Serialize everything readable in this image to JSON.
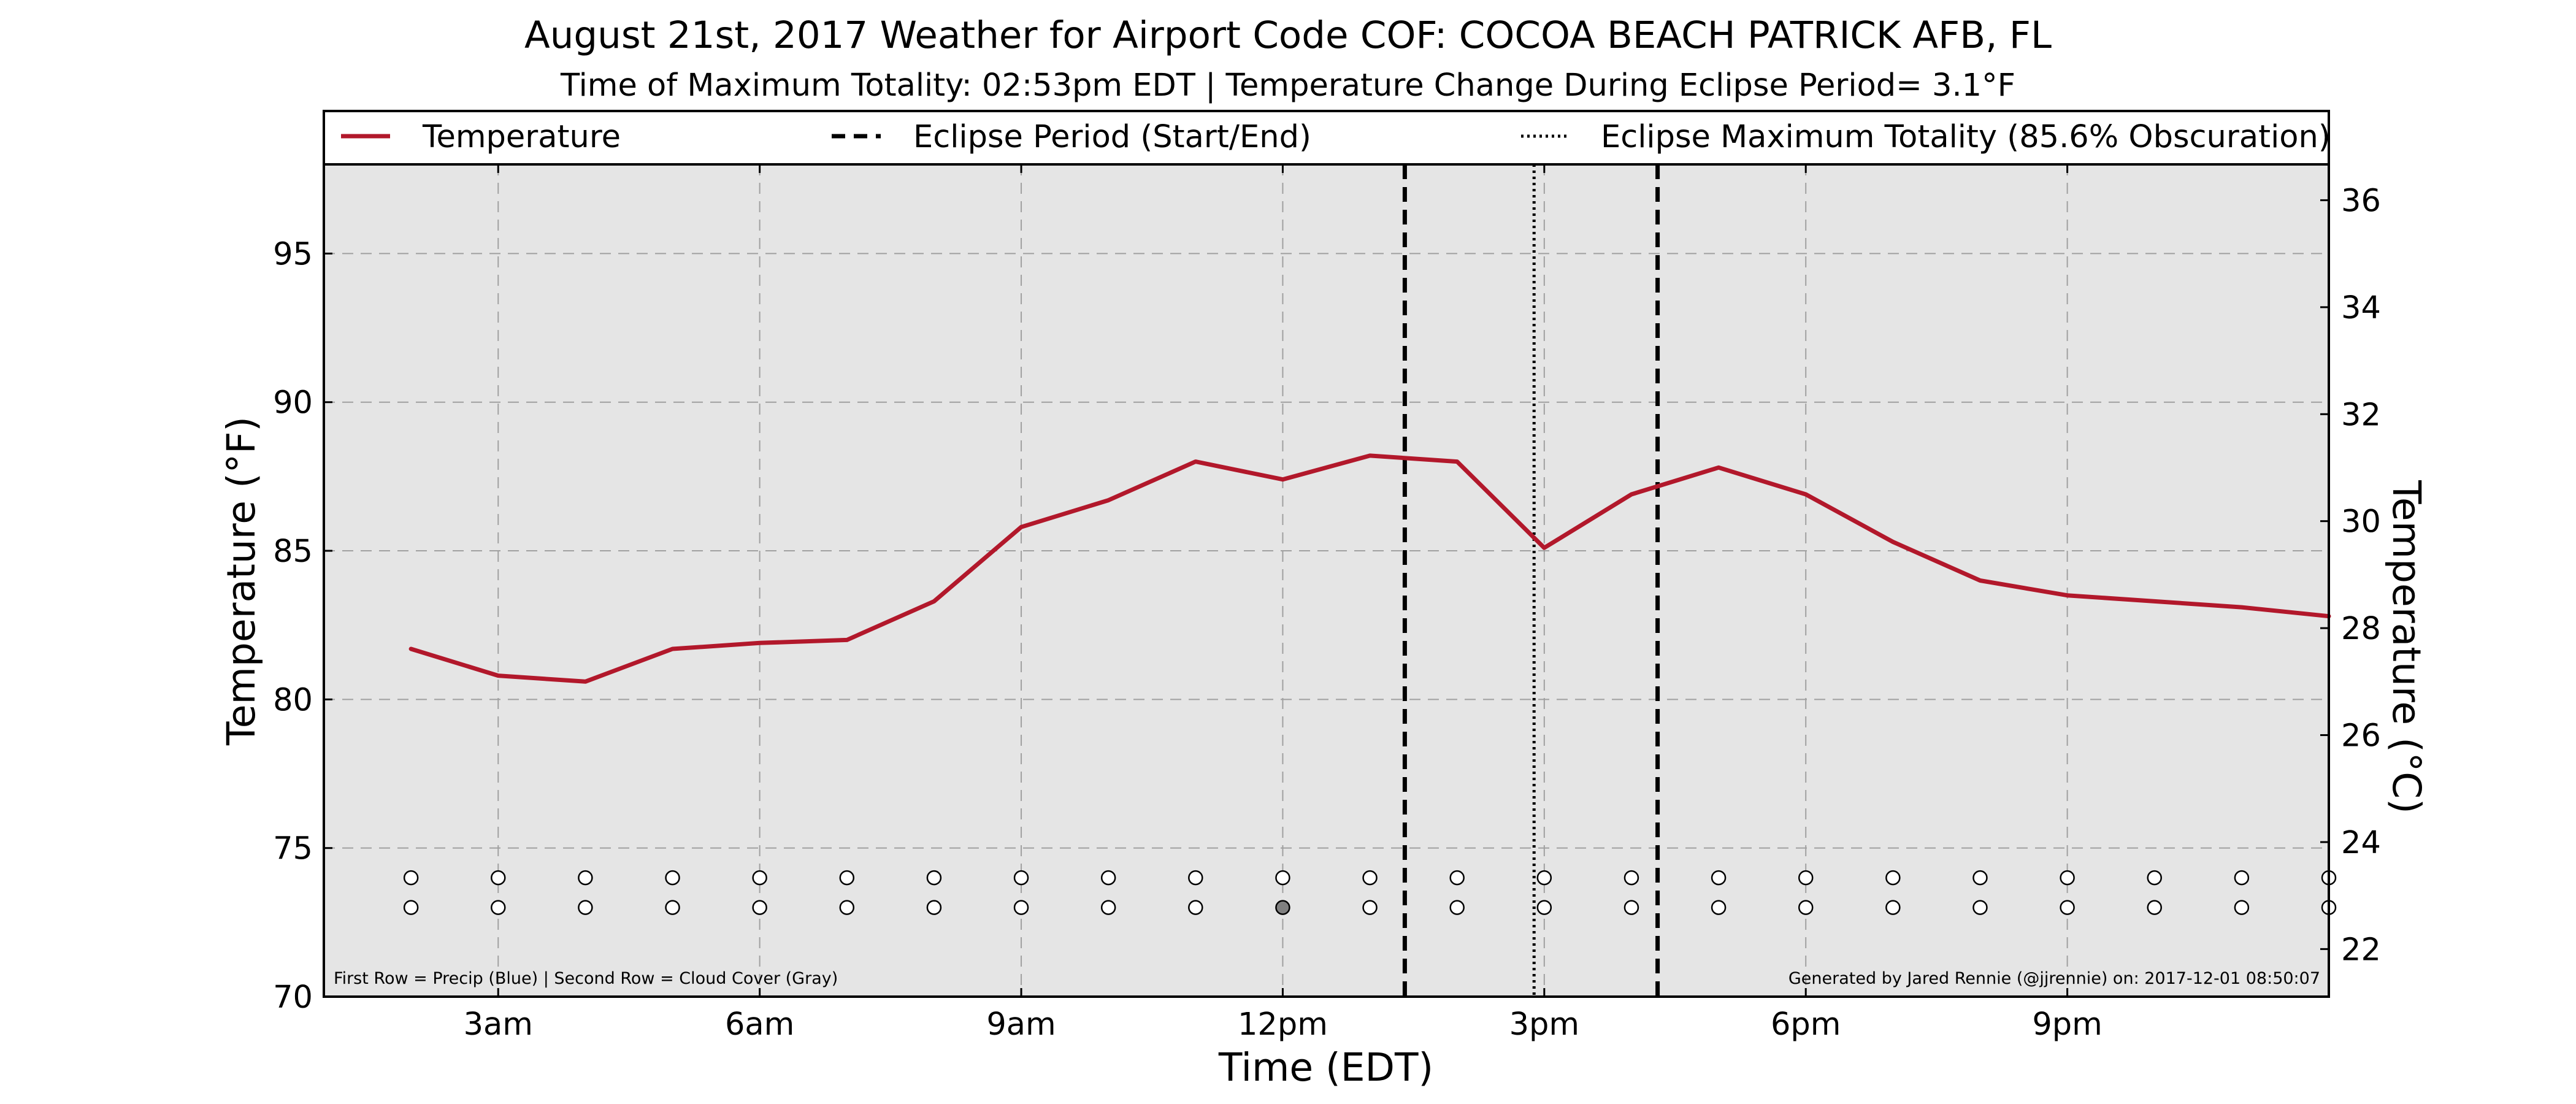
{
  "chart_data": {
    "type": "line",
    "title": "August 21st, 2017 Weather for Airport Code COF: COCOA BEACH PATRICK AFB, FL",
    "subtitle": "Time of Maximum Totality: 02:53pm EDT | Temperature Change During Eclipse Period= 3.1°F",
    "xlabel": "Time (EDT)",
    "ylabel": "Temperature (°F)",
    "ylabel_right": "Temperature (°C)",
    "xlim": [
      1.0,
      24.0
    ],
    "ylim": [
      70,
      98
    ],
    "ylim_right_c": [
      21.11,
      36.67
    ],
    "grid": true,
    "legend_position": "top",
    "x_ticks": [
      {
        "x": 3,
        "label": "3am"
      },
      {
        "x": 6,
        "label": "6am"
      },
      {
        "x": 9,
        "label": "9am"
      },
      {
        "x": 12,
        "label": "12pm"
      },
      {
        "x": 15,
        "label": "3pm"
      },
      {
        "x": 18,
        "label": "6pm"
      },
      {
        "x": 21,
        "label": "9pm"
      }
    ],
    "y_ticks": [
      70,
      75,
      80,
      85,
      90,
      95
    ],
    "y_ticks_right": [
      22,
      24,
      26,
      28,
      30,
      32,
      34,
      36
    ],
    "legend": [
      {
        "label": "Temperature",
        "style": "solid",
        "color": "#b2182b"
      },
      {
        "label": "Eclipse Period (Start/End)",
        "style": "dashed",
        "color": "#000000"
      },
      {
        "label": "Eclipse Maximum Totality (85.6% Obscuration)",
        "style": "dotted",
        "color": "#000000"
      }
    ],
    "series": [
      {
        "name": "Temperature",
        "color": "#b2182b",
        "x": [
          2,
          3,
          4,
          5,
          6,
          7,
          8,
          9,
          10,
          11,
          12,
          13,
          14,
          15,
          16,
          17,
          18,
          19,
          20,
          21,
          22,
          23,
          24
        ],
        "values": [
          81.7,
          80.8,
          80.6,
          81.7,
          81.9,
          82.0,
          83.3,
          85.8,
          86.7,
          88.0,
          87.4,
          88.2,
          88.0,
          85.1,
          86.9,
          87.8,
          86.9,
          85.3,
          84.0,
          83.5,
          83.3,
          83.1,
          82.8
        ]
      }
    ],
    "eclipse_start": 13.4,
    "eclipse_end": 16.3,
    "eclipse_max": 14.883,
    "precip_row": {
      "y": 74,
      "x": [
        2,
        3,
        4,
        5,
        6,
        7,
        8,
        9,
        10,
        11,
        12,
        13,
        14,
        15,
        16,
        17,
        18,
        19,
        20,
        21,
        22,
        23,
        24
      ],
      "filled": []
    },
    "cloud_row": {
      "y": 73,
      "x": [
        2,
        3,
        4,
        5,
        6,
        7,
        8,
        9,
        10,
        11,
        12,
        13,
        14,
        15,
        16,
        17,
        18,
        19,
        20,
        21,
        22,
        23,
        24
      ],
      "filled": [
        12
      ]
    },
    "footnote_left": "First Row = Precip (Blue) | Second Row = Cloud Cover (Gray)",
    "footnote_right": "Generated by Jared Rennie (@jjrennie) on: 2017-12-01 08:50:07"
  }
}
